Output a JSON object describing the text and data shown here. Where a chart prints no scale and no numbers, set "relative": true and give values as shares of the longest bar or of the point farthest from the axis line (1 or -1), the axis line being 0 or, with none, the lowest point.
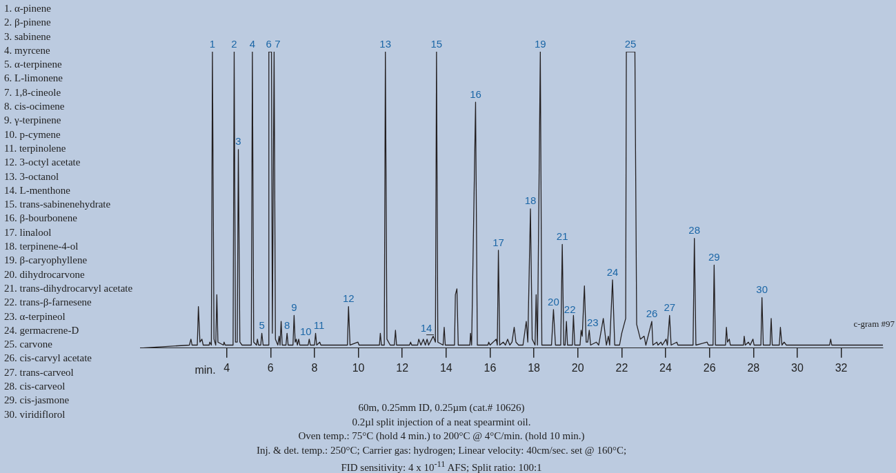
{
  "chart_data": {
    "type": "line",
    "relative": true,
    "xlabel": "min.",
    "xlim": [
      0.05,
      33.9
    ],
    "xticks": [
      4,
      6,
      8,
      10,
      12,
      14,
      16,
      18,
      20,
      22,
      24,
      26,
      28,
      30,
      32
    ],
    "tick_labels": "x",
    "grid": false,
    "marker": "none",
    "line_style": "solid",
    "series": [
      {
        "color": "#231f20",
        "x": [
          0.05,
          2.3,
          2.37,
          2.42,
          2.66,
          2.71,
          2.78,
          2.87,
          2.93,
          3.2,
          3.23,
          3.3,
          3.35,
          3.42,
          3.5,
          3.55,
          3.6,
          3.85,
          3.88,
          3.93,
          4.29,
          4.34,
          4.4,
          4.48,
          4.53,
          4.6,
          4.7,
          5.12,
          5.17,
          5.23,
          5.36,
          5.4,
          5.45,
          5.55,
          5.6,
          5.66,
          5.9,
          5.92,
          6.04,
          6.08,
          6.16,
          6.22,
          6.33,
          6.39,
          6.43,
          6.48,
          6.53,
          6.7,
          6.75,
          6.8,
          7.02,
          7.07,
          7.12,
          7.17,
          7.22,
          7.28,
          7.33,
          7.71,
          7.76,
          7.81,
          8.0,
          8.05,
          8.1,
          8.24,
          8.29,
          9.5,
          9.55,
          9.62,
          9.98,
          10.03,
          10.96,
          11.0,
          11.05,
          11.18,
          11.23,
          11.3,
          11.45,
          11.64,
          11.69,
          11.74,
          12.33,
          12.38,
          12.43,
          12.7,
          12.75,
          12.85,
          12.96,
          13.05,
          13.13,
          13.2,
          13.41,
          13.51,
          13.56,
          13.62,
          13.86,
          13.91,
          13.96,
          14.38,
          14.42,
          14.49,
          14.55,
          15.08,
          15.11,
          15.16,
          15.34,
          15.42,
          15.9,
          15.94,
          16.0,
          16.28,
          16.33,
          16.38,
          16.44,
          16.6,
          16.7,
          16.8,
          16.9,
          17.0,
          17.1,
          17.18,
          17.3,
          17.5,
          17.65,
          17.72,
          17.84,
          17.92,
          18.05,
          18.1,
          18.16,
          18.29,
          18.36,
          18.8,
          18.89,
          18.98,
          19.22,
          19.29,
          19.36,
          19.42,
          19.48,
          19.53,
          19.75,
          19.8,
          19.86,
          20.1,
          20.15,
          20.2,
          20.3,
          20.38,
          20.45,
          20.52,
          20.58,
          20.84,
          20.95,
          21.16,
          21.3,
          21.39,
          21.45,
          21.58,
          21.68,
          21.9,
          22.0,
          22.18,
          22.21,
          22.6,
          22.68,
          22.85,
          23.02,
          23.1,
          23.37,
          23.42,
          23.6,
          23.65,
          23.79,
          23.85,
          24.02,
          24.08,
          24.18,
          24.25,
          24.51,
          24.56,
          25.25,
          25.31,
          25.38,
          25.89,
          25.95,
          26.16,
          26.21,
          26.27,
          26.73,
          26.77,
          26.82,
          26.9,
          26.95,
          27.55,
          27.58,
          27.63,
          27.77,
          27.85,
          27.98,
          28.03,
          28.34,
          28.39,
          28.45,
          28.76,
          28.81,
          28.86,
          29.18,
          29.23,
          29.3,
          29.4,
          29.5,
          31.47,
          31.52,
          31.57,
          33.9
        ],
        "values": [
          0,
          0.01,
          0.03,
          0.01,
          0.01,
          0.14,
          0.02,
          0.03,
          0.01,
          0.01,
          0.02,
          0.01,
          1,
          0.03,
          0.01,
          0.18,
          0.02,
          0.01,
          0.02,
          0.01,
          0.01,
          1,
          0.02,
          0.02,
          0.67,
          0.02,
          0.01,
          0.01,
          1,
          0.02,
          0.01,
          0.03,
          0.01,
          0.01,
          0.05,
          0.01,
          0.01,
          1,
          1,
          0.05,
          1,
          0.03,
          0.01,
          0.04,
          0.01,
          0.09,
          0.01,
          0.01,
          0.05,
          0.01,
          0.01,
          0.11,
          0.02,
          0.03,
          0.01,
          0.03,
          0.01,
          0.01,
          0.03,
          0.01,
          0.01,
          0.05,
          0.01,
          0.02,
          0.01,
          0.01,
          0.14,
          0.01,
          0.02,
          0.01,
          0.01,
          0.05,
          0.01,
          0.01,
          1,
          0.03,
          0.01,
          0.01,
          0.06,
          0.01,
          0.01,
          0.02,
          0.01,
          0.01,
          0.03,
          0.01,
          0.03,
          0.01,
          0.03,
          0.01,
          0.04,
          0.02,
          1,
          0.02,
          0.01,
          0.07,
          0.01,
          0.01,
          0.18,
          0.2,
          0.01,
          0.01,
          0.05,
          0.01,
          0.83,
          0.01,
          0.01,
          0.02,
          0.01,
          0.03,
          0.01,
          0.33,
          0.01,
          0.02,
          0.01,
          0.03,
          0.01,
          0.02,
          0.07,
          0.02,
          0.01,
          0.01,
          0.09,
          0.02,
          0.47,
          0.03,
          0.01,
          0.18,
          0.01,
          1,
          0.01,
          0.01,
          0.13,
          0.01,
          0.01,
          0.35,
          0.01,
          0.01,
          0.09,
          0.01,
          0.01,
          0.11,
          0.01,
          0.01,
          0.06,
          0.04,
          0.21,
          0.02,
          0.02,
          0.06,
          0.01,
          0.02,
          0.01,
          0.1,
          0.01,
          0.04,
          0.01,
          0.23,
          0.01,
          0.01,
          0.05,
          0.1,
          1,
          1,
          0.08,
          0.03,
          0.04,
          0.01,
          0.09,
          0.01,
          0.02,
          0.01,
          0.02,
          0.01,
          0.03,
          0.01,
          0.11,
          0.01,
          0.02,
          0.01,
          0.01,
          0.37,
          0.01,
          0.02,
          0.01,
          0.01,
          0.28,
          0.01,
          0.01,
          0.07,
          0.02,
          0.03,
          0.01,
          0.01,
          0.04,
          0.01,
          0.02,
          0.01,
          0.03,
          0.01,
          0.01,
          0.17,
          0.01,
          0.01,
          0.1,
          0.01,
          0.01,
          0.07,
          0.01,
          0.02,
          0.01,
          0.01,
          0.03,
          0.01,
          0.01
        ]
      }
    ],
    "annotations": [
      "1. α-pinene",
      "2. β-pinene",
      "3. sabinene",
      "4. myrcene",
      "5. α-terpinene",
      "6. L-limonene",
      "7. 1,8-cineole",
      "8. cis-ocimene",
      "9. γ-terpinene",
      "10. p-cymene",
      "11. terpinolene",
      "12. 3-octyl acetate",
      "13. 3-octanol",
      "14. L-menthone",
      "15. trans-sabinenehydrate",
      "16. β-bourbonene",
      "17. linalool",
      "18. terpinene-4-ol",
      "19. β-caryophyllene",
      "20. dihydrocarvone",
      "21. trans-dihydrocarvyl acetate",
      "22. trans-β-farnesene",
      "23. α-terpineol",
      "24. germacrene-D",
      "25. carvone",
      "26. cis-carvyl acetate",
      "27. trans-carveol",
      "28. cis-carveol",
      "29. cis-jasmone",
      "30. viridiflorol",
      "60m, 0.25mm ID, 0.25µm (cat.# 10626)",
      "0.2µl split injection of a neat spearmint oil.",
      "Oven temp.: 75°C (hold 4 min.) to 200°C @ 4°C/min. (hold 10 min.)",
      "Inj. & det. temp.: 250°C; Carrier gas: hydrogen; Linear velocity: 40cm/sec. set @ 160°C;",
      "FID sensitivity: 4 x 10$^{-11}$ AFS; Split ratio: 100:1",
      "c-gram #97",
      {
        "text": "1",
        "x": 3.35,
        "y": 1
      },
      {
        "text": "2",
        "x": 4.34,
        "y": 1
      },
      {
        "text": "3",
        "x": 4.53,
        "y": 0.67
      },
      {
        "text": "4",
        "x": 5.17,
        "y": 1
      },
      {
        "text": "5",
        "x": 5.6,
        "y": 0.05
      },
      {
        "text": "6",
        "x": 5.92,
        "y": 1
      },
      {
        "text": "7",
        "x": 6.16,
        "y": 1
      },
      {
        "text": "8",
        "x": 6.75,
        "y": 0.05
      },
      {
        "text": "9",
        "x": 7.07,
        "y": 0.11
      },
      {
        "text": "10",
        "x": 7.76,
        "y": 0.03
      },
      {
        "text": "11",
        "x": 8.05,
        "y": 0.05
      },
      {
        "text": "12",
        "x": 9.55,
        "y": 0.14
      },
      {
        "text": "13",
        "x": 11.23,
        "y": 1
      },
      {
        "text": "14",
        "x": 13.41,
        "y": 0.04
      },
      {
        "text": "15",
        "x": 13.56,
        "y": 1
      },
      {
        "text": "16",
        "x": 15.34,
        "y": 0.83
      },
      {
        "text": "17",
        "x": 16.38,
        "y": 0.33
      },
      {
        "text": "18",
        "x": 17.84,
        "y": 0.47
      },
      {
        "text": "19",
        "x": 18.29,
        "y": 1
      },
      {
        "text": "20",
        "x": 18.89,
        "y": 0.13
      },
      {
        "text": "21",
        "x": 19.29,
        "y": 0.35
      },
      {
        "text": "22",
        "x": 19.48,
        "y": 0.09
      },
      {
        "text": "23",
        "x": 20.52,
        "y": 0.06
      },
      {
        "text": "24",
        "x": 21.58,
        "y": 0.23
      },
      {
        "text": "25",
        "x": 22.4,
        "y": 1
      },
      {
        "text": "26",
        "x": 23.37,
        "y": 0.09
      },
      {
        "text": "27",
        "x": 24.18,
        "y": 0.11
      },
      {
        "text": "28",
        "x": 25.31,
        "y": 0.37
      },
      {
        "text": "29",
        "x": 26.21,
        "y": 0.28
      },
      {
        "text": "30",
        "x": 28.39,
        "y": 0.17
      }
    ]
  }
}
